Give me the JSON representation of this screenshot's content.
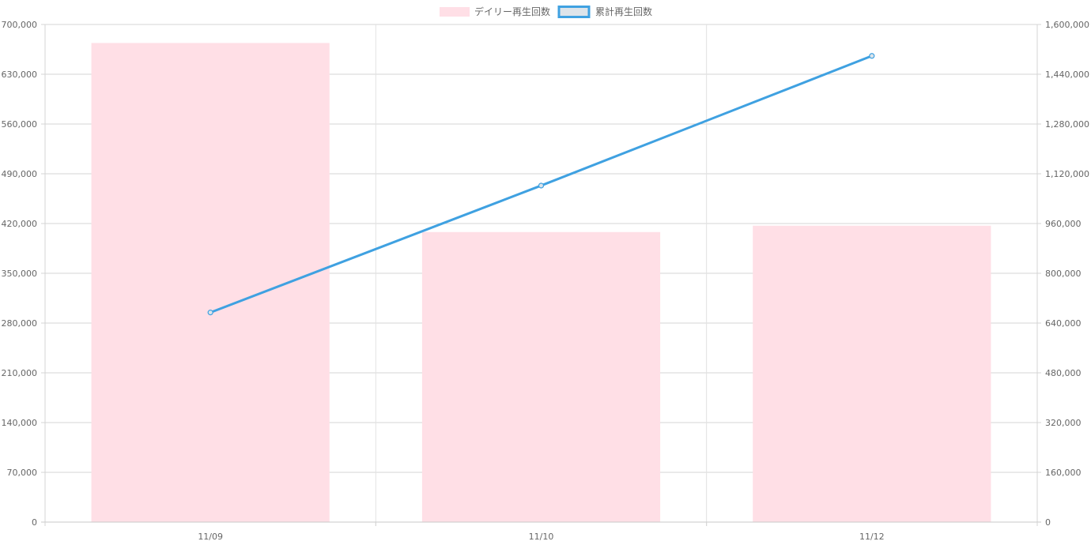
{
  "chart_data": {
    "type": "bar",
    "categories": [
      "11/09",
      "11/10",
      "11/12"
    ],
    "series": [
      {
        "name": "デイリー再生回数",
        "type": "bar",
        "axis": "left",
        "color": "#ffdfe6",
        "values": [
          674000,
          408000,
          417000
        ]
      },
      {
        "name": "累計再生回数",
        "type": "line",
        "axis": "right",
        "color": "#3fa1e1",
        "values": [
          674000,
          1082000,
          1499000
        ]
      }
    ],
    "y_left": {
      "min": 0,
      "max": 700000,
      "ticks": [
        "0",
        "70,000",
        "140,000",
        "210,000",
        "280,000",
        "350,000",
        "420,000",
        "490,000",
        "560,000",
        "630,000",
        "700,000"
      ]
    },
    "y_right": {
      "min": 0,
      "max": 1600000,
      "ticks": [
        "0",
        "160,000",
        "320,000",
        "480,000",
        "640,000",
        "800,000",
        "960,000",
        "1,120,000",
        "1,280,000",
        "1,440,000",
        "1,600,000"
      ]
    },
    "legend_position": "top",
    "grid": true,
    "title": "",
    "xlabel": "",
    "ylabel": ""
  }
}
